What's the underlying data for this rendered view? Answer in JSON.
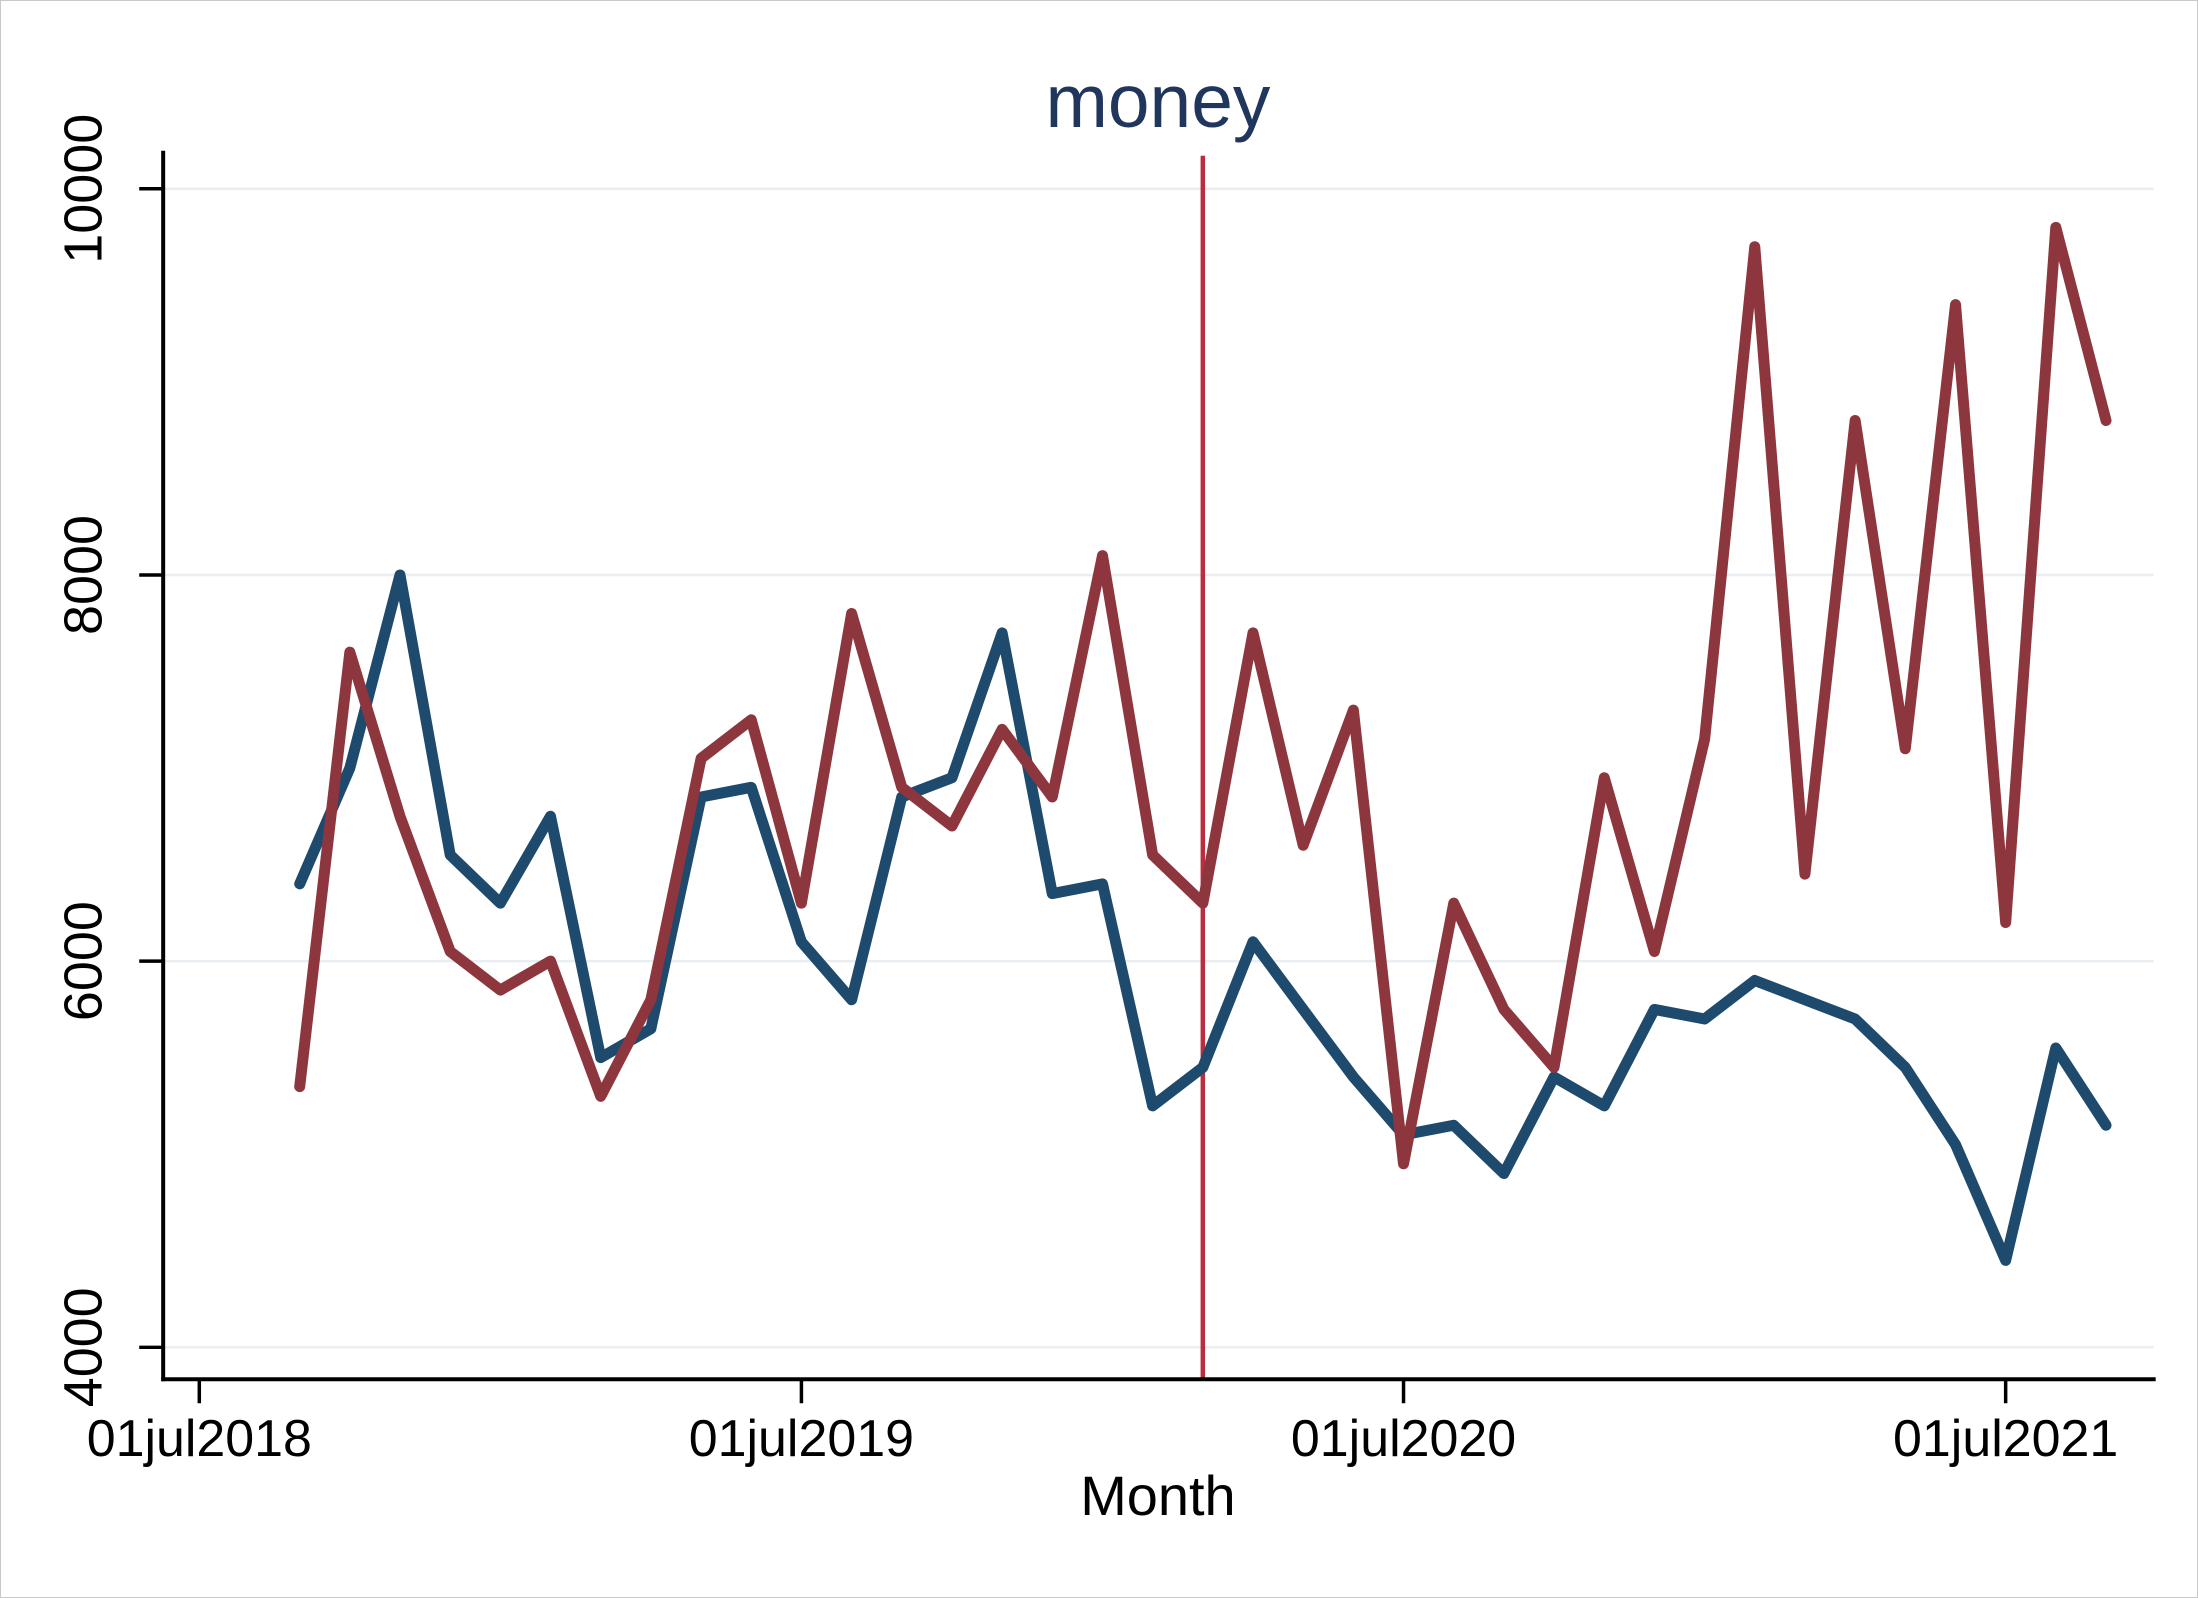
{
  "window": {
    "background": "#ffffff"
  },
  "chart_data": {
    "type": "line",
    "title": "money",
    "xlabel": "Month",
    "ylabel": "",
    "grid": "horizontal",
    "legend_position": "none",
    "x": [
      "2018-09",
      "2018-10",
      "2018-11",
      "2018-12",
      "2019-01",
      "2019-02",
      "2019-03",
      "2019-04",
      "2019-05",
      "2019-06",
      "2019-07",
      "2019-08",
      "2019-09",
      "2019-10",
      "2019-11",
      "2019-12",
      "2020-01",
      "2020-02",
      "2020-03",
      "2020-04",
      "2020-05",
      "2020-06",
      "2020-07",
      "2020-08",
      "2020-09",
      "2020-10",
      "2020-11",
      "2020-12",
      "2021-01",
      "2021-02",
      "2021-03",
      "2021-04",
      "2021-05",
      "2021-06",
      "2021-07",
      "2021-08",
      "2021-09"
    ],
    "series": [
      {
        "name": "navy-series",
        "color": "#1e4a6d",
        "values": [
          6400,
          7000,
          8000,
          6550,
          6300,
          6750,
          5500,
          5650,
          6850,
          6900,
          6100,
          5800,
          6850,
          6950,
          7700,
          6350,
          6400,
          5250,
          5450,
          6100,
          5750,
          5400,
          5100,
          5150,
          4900,
          5400,
          5250,
          5750,
          5700,
          5900,
          5800,
          5700,
          5450,
          5050,
          4450,
          5550,
          5150
        ]
      },
      {
        "name": "maroon-series",
        "color": "#8e363d",
        "values": [
          5350,
          7600,
          6750,
          6050,
          5850,
          6000,
          5300,
          5800,
          7050,
          7250,
          6300,
          7800,
          6900,
          6700,
          7200,
          6850,
          8100,
          6550,
          6300,
          7700,
          6600,
          7300,
          4950,
          6300,
          5750,
          5450,
          6950,
          6050,
          7150,
          9700,
          6450,
          8800,
          7100,
          9400,
          6200,
          9800,
          8800
        ]
      }
    ],
    "vline": {
      "x": "2020-03",
      "color": "#bb2d3e"
    },
    "ylim": [
      4000,
      10000
    ],
    "yticks": [
      {
        "value": 4000,
        "label": "4000"
      },
      {
        "value": 6000,
        "label": "6000"
      },
      {
        "value": 8000,
        "label": "8000"
      },
      {
        "value": 10000,
        "label": "10000"
      }
    ],
    "xticks": [
      {
        "x": "2018-07",
        "label": "01jul2018"
      },
      {
        "x": "2019-07",
        "label": "01jul2019"
      },
      {
        "x": "2020-07",
        "label": "01jul2020"
      },
      {
        "x": "2021-07",
        "label": "01jul2021"
      }
    ],
    "colors": {
      "title": "#21365c",
      "gridline": "#e8eef2",
      "axis": "#000000",
      "tick_text": "#000000"
    }
  }
}
